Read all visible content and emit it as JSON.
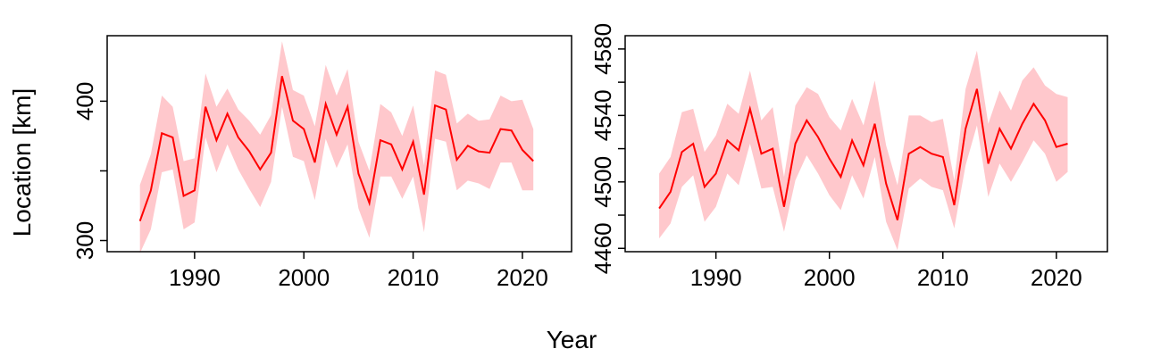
{
  "figure": {
    "xlabel": "Year",
    "ylabel": "Location [km]"
  },
  "colors": {
    "line": "#ff0000",
    "band": "#ffc8cc",
    "axis": "#000000",
    "background": "#ffffff"
  },
  "chart_data": [
    {
      "type": "line",
      "title": "",
      "xlabel": "Year",
      "ylabel": "Location [km]",
      "xlim": [
        1982,
        2024.5
      ],
      "ylim": [
        292,
        447
      ],
      "xticks": [
        1990,
        2000,
        2010,
        2020
      ],
      "yticks": [
        300,
        350,
        400
      ],
      "ytick_labels": [
        "300",
        "",
        "400"
      ],
      "band": "uncertainty interval",
      "grid": false,
      "legend": "none",
      "x": [
        1985,
        1986,
        1987,
        1988,
        1989,
        1990,
        1991,
        1992,
        1993,
        1994,
        1995,
        1996,
        1997,
        1998,
        1999,
        2000,
        2001,
        2002,
        2003,
        2004,
        2005,
        2006,
        2007,
        2008,
        2009,
        2010,
        2011,
        2012,
        2013,
        2014,
        2015,
        2016,
        2017,
        2018,
        2019,
        2020,
        2021
      ],
      "series": [
        {
          "values": [
            314,
            336,
            377,
            374,
            332,
            336,
            396,
            372,
            391,
            374,
            364,
            351,
            363,
            418,
            386,
            380,
            356,
            398,
            376,
            396,
            348,
            327,
            372,
            369,
            351,
            371,
            333,
            397,
            394,
            358,
            368,
            364,
            363,
            380,
            379,
            365,
            357
          ]
        }
      ],
      "upper": [
        340,
        362,
        404,
        396,
        357,
        359,
        420,
        396,
        409,
        394,
        386,
        376,
        390,
        443,
        408,
        404,
        382,
        426,
        404,
        423,
        371,
        350,
        398,
        392,
        375,
        397,
        354,
        422,
        419,
        384,
        391,
        386,
        387,
        404,
        400,
        401,
        380
      ],
      "lower": [
        291,
        308,
        349,
        351,
        308,
        313,
        374,
        349,
        369,
        351,
        337,
        324,
        342,
        396,
        360,
        357,
        329,
        373,
        352,
        369,
        323,
        302,
        346,
        346,
        330,
        346,
        306,
        373,
        371,
        336,
        343,
        341,
        337,
        356,
        356,
        336,
        336
      ]
    },
    {
      "type": "line",
      "title": "",
      "xlabel": "Year",
      "ylabel": "",
      "xlim": [
        1982,
        2024.5
      ],
      "ylim": [
        4458,
        4588
      ],
      "xticks": [
        1990,
        2000,
        2010,
        2020
      ],
      "yticks": [
        4460,
        4480,
        4500,
        4520,
        4540,
        4560,
        4580
      ],
      "ytick_labels": [
        "4460",
        "",
        "4500",
        "",
        "4540",
        "",
        "4580"
      ],
      "band": "uncertainty interval",
      "grid": false,
      "legend": "none",
      "x": [
        1985,
        1986,
        1987,
        1988,
        1989,
        1990,
        1991,
        1992,
        1993,
        1994,
        1995,
        1996,
        1997,
        1998,
        1999,
        2000,
        2001,
        2002,
        2003,
        2004,
        2005,
        2006,
        2007,
        2008,
        2009,
        2010,
        2011,
        2012,
        2013,
        2014,
        2015,
        2016,
        2017,
        2018,
        2019,
        2020,
        2021
      ],
      "series": [
        {
          "values": [
            4484,
            4494,
            4518,
            4523,
            4497,
            4505,
            4525,
            4519,
            4544,
            4517,
            4520,
            4485,
            4523,
            4537,
            4527,
            4514,
            4503,
            4525,
            4510,
            4535,
            4499,
            4477,
            4517,
            4521,
            4517,
            4515,
            4486,
            4532,
            4556,
            4511,
            4532,
            4520,
            4535,
            4547,
            4537,
            4521,
            4523
          ]
        }
      ],
      "upper": [
        4505,
        4515,
        4542,
        4544,
        4518,
        4528,
        4547,
        4541,
        4567,
        4537,
        4545,
        4503,
        4546,
        4557,
        4553,
        4539,
        4531,
        4550,
        4534,
        4561,
        4522,
        4498,
        4540,
        4540,
        4536,
        4538,
        4501,
        4556,
        4579,
        4535,
        4555,
        4543,
        4561,
        4569,
        4558,
        4553,
        4551
      ],
      "lower": [
        4466,
        4475,
        4497,
        4504,
        4476,
        4485,
        4505,
        4498,
        4523,
        4496,
        4497,
        4470,
        4501,
        4516,
        4505,
        4492,
        4483,
        4504,
        4490,
        4515,
        4476,
        4459,
        4496,
        4502,
        4497,
        4495,
        4472,
        4510,
        4534,
        4491,
        4511,
        4500,
        4512,
        4525,
        4517,
        4500,
        4506
      ]
    }
  ]
}
